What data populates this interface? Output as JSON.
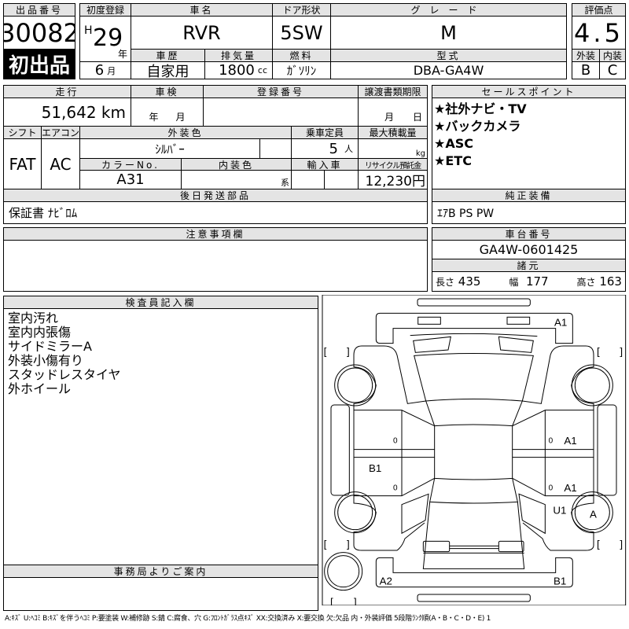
{
  "header": {
    "lot_label": "出品番号",
    "lot_number": "30082",
    "first_listing": "初出品",
    "first_reg_label": "初度登録",
    "era": "H",
    "year": "29",
    "year_unit": "年",
    "month": "6",
    "month_unit": "月",
    "car_name_label": "車名",
    "car_name": "RVR",
    "door_label": "ドア形状",
    "door": "5SW",
    "grade_label": "グレード",
    "grade": "M",
    "score_label": "評価点",
    "score": "4.5",
    "history_label": "車歴",
    "history": "自家用",
    "displacement_label": "排気量",
    "displacement": "1800",
    "displacement_unit": "cc",
    "fuel_label": "燃料",
    "fuel": "ｶﾞｿﾘﾝ",
    "model_label": "型式",
    "model": "DBA-GA4W",
    "exterior_label": "外装",
    "exterior": "B",
    "interior_label": "内装",
    "interior": "C"
  },
  "details": {
    "mileage_label": "走行",
    "mileage": "51,642 km",
    "inspection_label": "車検",
    "inspection_year": "年",
    "inspection_month": "月",
    "reg_no_label": "登録番号",
    "transfer_label": "譲渡書類期限",
    "transfer_month": "月",
    "transfer_day": "日",
    "shift_label": "シフト",
    "shift": "FAT",
    "ac_label": "エアコン",
    "ac": "AC",
    "ext_color_label": "外装色",
    "ext_color": "ｼﾙﾊﾞｰ",
    "capacity_label": "乗車定員",
    "capacity": "5",
    "capacity_unit": "人",
    "load_label": "最大積載量",
    "load_unit": "kg",
    "color_no_label": "カラーNo.",
    "color_no": "A31",
    "int_color_label": "内装色",
    "int_color_unit": "系",
    "import_label": "輸入車",
    "recycle_label": "リサイクル預託金",
    "recycle": "12,230円",
    "later_parts_label": "後日発送部品",
    "later_parts": "保証書 ﾅﾋﾞﾛﾑ"
  },
  "sales": {
    "label": "セールスポイント",
    "points": [
      "★社外ナビ・TV",
      "★バックカメラ",
      "★ASC",
      "★ETC"
    ]
  },
  "equipment": {
    "label": "純正装備",
    "value": "ｴｱB PS PW"
  },
  "notes": {
    "label": "注意事項欄"
  },
  "chassis": {
    "label": "車台番号",
    "value": "GA4W-0601425",
    "spec_label": "諸元",
    "length_label": "長さ",
    "length": "435",
    "width_label": "幅",
    "width": "177",
    "height_label": "高さ",
    "height": "163"
  },
  "inspector": {
    "label": "検査員記入欄",
    "items": [
      "室内汚れ",
      "室内内張傷",
      "サイドミラーA",
      "外装小傷有り",
      "スタッドレスタイヤ",
      "外ホイール"
    ]
  },
  "office": {
    "label": "事務局よりご案内"
  },
  "diagram": {
    "marks": [
      "A1",
      "A1",
      "A1",
      "B1",
      "U1",
      "A",
      "A2",
      "B1"
    ],
    "small": "0"
  },
  "footer": "A:ｷｽﾞ U:ﾍｺﾐ B:ｷｽﾞを伴うﾍｺﾐ P:要塗装 W:補修跡 S:錆 C:腐食、穴 G:ﾌﾛﾝﾄｶﾞﾗｽ点ｷｽﾞ XX:交換済み X:要交換 欠:欠品 内・外装評価 5段階ﾗﾝｸ順(A・B・C・D・E) 1"
}
